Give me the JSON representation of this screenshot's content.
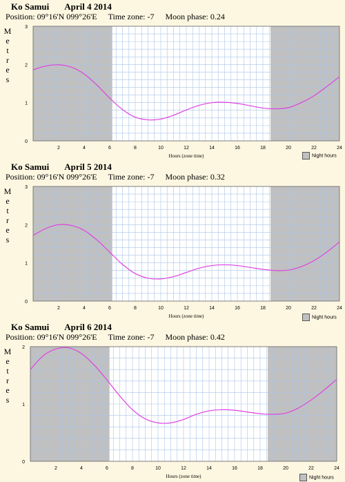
{
  "chart_data": [
    {
      "type": "line",
      "location": "Ko Samui",
      "date": "April 4 2014",
      "position_label": "Position: 09°16'N 099°26'E",
      "timezone_label": "Time zone: -7",
      "moon_label": "Moon phase: 0.24",
      "ylabel": "Metres",
      "xlabel": "Hours (zone time)",
      "legend": "Night hours",
      "xlim": [
        0,
        24
      ],
      "ylim": [
        0,
        3
      ],
      "x_ticks": [
        2,
        4,
        6,
        8,
        10,
        12,
        14,
        16,
        18,
        20,
        22,
        24
      ],
      "y_ticks": [
        0,
        1,
        2,
        3
      ],
      "night": [
        [
          0,
          6.2
        ],
        [
          18.6,
          24
        ]
      ],
      "line_color": "#e040e0",
      "night_color": "#c0c0c0",
      "x": [
        0,
        1,
        2,
        3,
        4,
        5,
        6,
        7,
        8,
        9,
        10,
        11,
        12,
        13,
        14,
        15,
        16,
        17,
        18,
        19,
        20,
        21,
        22,
        23,
        24
      ],
      "y": [
        1.86,
        1.96,
        1.99,
        1.93,
        1.75,
        1.46,
        1.12,
        0.82,
        0.62,
        0.55,
        0.57,
        0.67,
        0.81,
        0.93,
        1.0,
        1.01,
        0.98,
        0.92,
        0.86,
        0.84,
        0.87,
        1.0,
        1.18,
        1.42,
        1.68
      ]
    },
    {
      "type": "line",
      "location": "Ko Samui",
      "date": "April 5 2014",
      "position_label": "Position: 09°16'N 099°26'E",
      "timezone_label": "Time zone: -7",
      "moon_label": "Moon phase: 0.32",
      "ylabel": "Metres",
      "xlabel": "Hours (zone time)",
      "legend": "Night hours",
      "xlim": [
        0,
        24
      ],
      "ylim": [
        0,
        3
      ],
      "x_ticks": [
        2,
        4,
        6,
        8,
        10,
        12,
        14,
        16,
        18,
        20,
        22,
        24
      ],
      "y_ticks": [
        0,
        1,
        2,
        3
      ],
      "night": [
        [
          0,
          6.2
        ],
        [
          18.6,
          24
        ]
      ],
      "line_color": "#e040e0",
      "night_color": "#c0c0c0",
      "x": [
        0,
        1,
        2,
        3,
        4,
        5,
        6,
        7,
        8,
        9,
        10,
        11,
        12,
        13,
        14,
        15,
        16,
        17,
        18,
        19,
        20,
        21,
        22,
        23,
        24
      ],
      "y": [
        1.72,
        1.9,
        2.0,
        1.98,
        1.85,
        1.6,
        1.28,
        0.96,
        0.72,
        0.6,
        0.58,
        0.64,
        0.75,
        0.86,
        0.93,
        0.95,
        0.93,
        0.88,
        0.83,
        0.8,
        0.81,
        0.9,
        1.06,
        1.28,
        1.55
      ]
    },
    {
      "type": "line",
      "location": "Ko Samui",
      "date": "April 6 2014",
      "position_label": "Position: 09°16'N 099°26'E",
      "timezone_label": "Time zone: -7",
      "moon_label": "Moon phase: 0.42",
      "ylabel": "Metres",
      "xlabel": "Hours (zone time)",
      "legend": "Night hours",
      "xlim": [
        0,
        24
      ],
      "ylim": [
        0,
        2
      ],
      "x_ticks": [
        2,
        4,
        6,
        8,
        10,
        12,
        14,
        16,
        18,
        20,
        22,
        24
      ],
      "y_ticks": [
        0,
        1,
        2
      ],
      "night": [
        [
          0,
          6.2
        ],
        [
          18.6,
          24
        ]
      ],
      "line_color": "#e040e0",
      "night_color": "#c0c0c0",
      "x": [
        0,
        1,
        2,
        3,
        4,
        5,
        6,
        7,
        8,
        9,
        10,
        11,
        12,
        13,
        14,
        15,
        16,
        17,
        18,
        19,
        20,
        21,
        22,
        23,
        24
      ],
      "y": [
        1.6,
        1.84,
        1.96,
        1.98,
        1.88,
        1.68,
        1.42,
        1.14,
        0.9,
        0.74,
        0.67,
        0.67,
        0.73,
        0.82,
        0.88,
        0.9,
        0.89,
        0.86,
        0.83,
        0.82,
        0.84,
        0.93,
        1.07,
        1.24,
        1.43
      ]
    }
  ]
}
